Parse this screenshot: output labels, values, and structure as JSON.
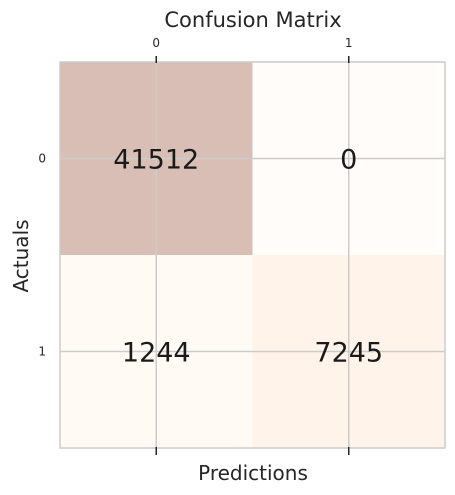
{
  "chart_data": {
    "type": "heatmap",
    "title": "Confusion Matrix",
    "xlabel": "Predictions",
    "ylabel": "Actuals",
    "x_categories": [
      "0",
      "1"
    ],
    "y_categories": [
      "0",
      "1"
    ],
    "x_tick_position": "top",
    "values": [
      [
        41512,
        0
      ],
      [
        1244,
        7245
      ]
    ],
    "cell_colors": [
      [
        "#d8beb5",
        "#fffcfa"
      ],
      [
        "#fffaf4",
        "#fff3ea"
      ]
    ],
    "grid": true
  }
}
